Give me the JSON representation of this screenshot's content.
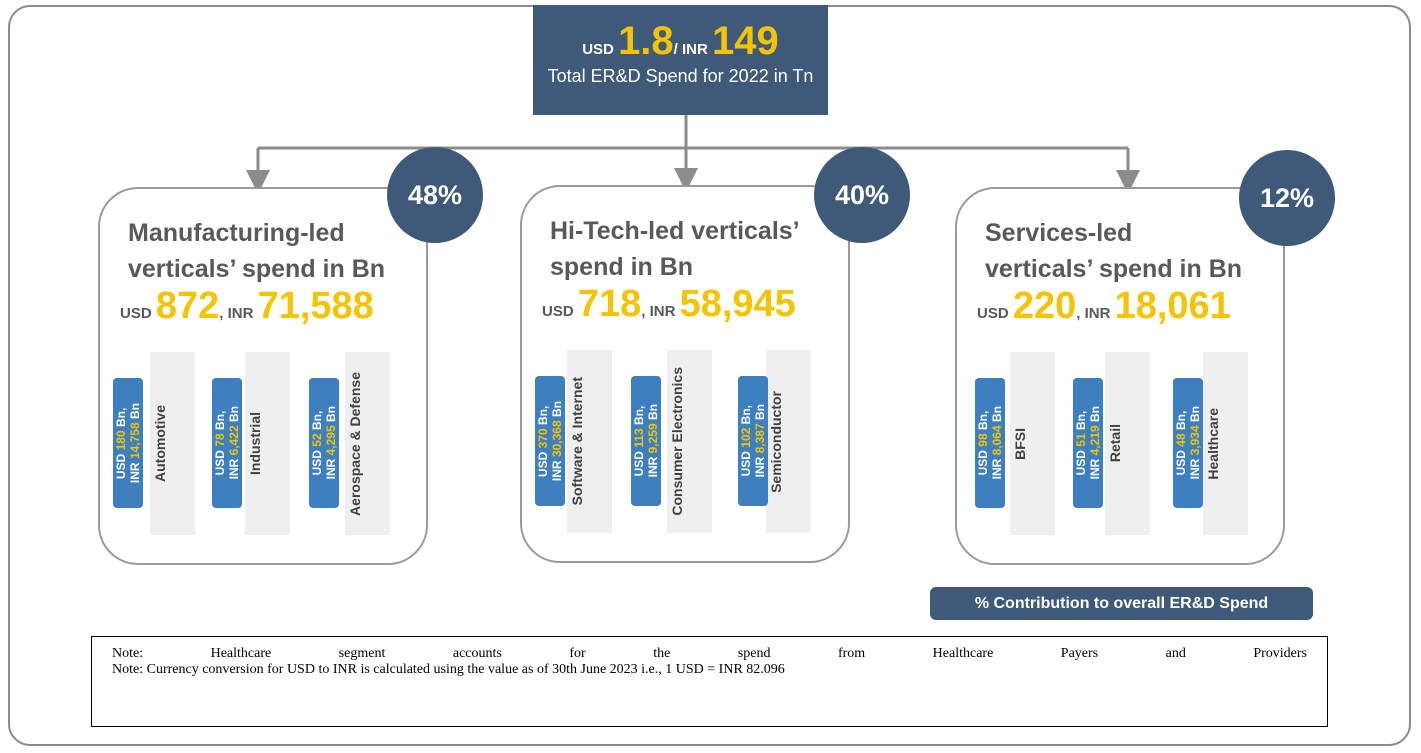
{
  "header": {
    "usd_label": "USD",
    "usd_value": "1.8",
    "inr_label": "/ INR",
    "inr_value": "149",
    "subtitle": "Total ER&D Spend for 2022 in Tn"
  },
  "cards": [
    {
      "percent": "48%",
      "title_line1": "Manufacturing-led",
      "title_line2": "verticals’ spend in Bn",
      "usd_label": "USD",
      "usd_value": "872",
      "inr_label": ", INR",
      "inr_value": "71,588",
      "items": [
        {
          "usd_label": "USD",
          "usd_value": "180",
          "usd_unit": "Bn,",
          "inr_label": "INR",
          "inr_value": "14,758",
          "inr_unit": "Bn",
          "name": "Automotive"
        },
        {
          "usd_label": "USD",
          "usd_value": "78",
          "usd_unit": "Bn,",
          "inr_label": "INR",
          "inr_value": "6,422",
          "inr_unit": "Bn",
          "name": "Industrial"
        },
        {
          "usd_label": "USD",
          "usd_value": "52",
          "usd_unit": "Bn,",
          "inr_label": "INR",
          "inr_value": "4,295",
          "inr_unit": "Bn",
          "name": "Aerospace & Defense"
        }
      ]
    },
    {
      "percent": "40%",
      "title_line1": "Hi-Tech-led verticals’",
      "title_line2": "spend in Bn",
      "usd_label": "USD",
      "usd_value": "718",
      "inr_label": ", INR",
      "inr_value": "58,945",
      "items": [
        {
          "usd_label": "USD",
          "usd_value": "370",
          "usd_unit": "Bn,",
          "inr_label": "INR",
          "inr_value": "30,368",
          "inr_unit": "Bn",
          "name": "Software & Internet"
        },
        {
          "usd_label": "USD",
          "usd_value": "113",
          "usd_unit": "Bn,",
          "inr_label": "INR",
          "inr_value": "9,259",
          "inr_unit": "Bn",
          "name": "Consumer Electronics"
        },
        {
          "usd_label": "USD",
          "usd_value": "102",
          "usd_unit": "Bn,",
          "inr_label": "INR",
          "inr_value": "8,387",
          "inr_unit": "Bn",
          "name": "Semiconductor"
        }
      ]
    },
    {
      "percent": "12%",
      "title_line1": "Services-led",
      "title_line2": "verticals’ spend in Bn",
      "usd_label": "USD",
      "usd_value": "220",
      "inr_label": ", INR",
      "inr_value": "18,061",
      "items": [
        {
          "usd_label": "USD",
          "usd_value": "98",
          "usd_unit": "Bn,",
          "inr_label": "INR",
          "inr_value": "8,064",
          "inr_unit": "Bn",
          "name": "BFSI"
        },
        {
          "usd_label": "USD",
          "usd_value": "51",
          "usd_unit": "Bn,",
          "inr_label": "INR",
          "inr_value": "4,219",
          "inr_unit": "Bn",
          "name": "Retail"
        },
        {
          "usd_label": "USD",
          "usd_value": "48",
          "usd_unit": "Bn,",
          "inr_label": "INR",
          "inr_value": "3,934",
          "inr_unit": "Bn",
          "name": "Healthcare"
        }
      ]
    }
  ],
  "legend": "% Contribution to overall ER&D Spend",
  "notes": [
    "Note: Healthcare segment accounts for the spend from Healthcare Payers and Providers",
    "Note: Currency conversion for USD to INR is calculated using the value as of 30th June 2023 i.e., 1 USD = INR 82.096"
  ]
}
